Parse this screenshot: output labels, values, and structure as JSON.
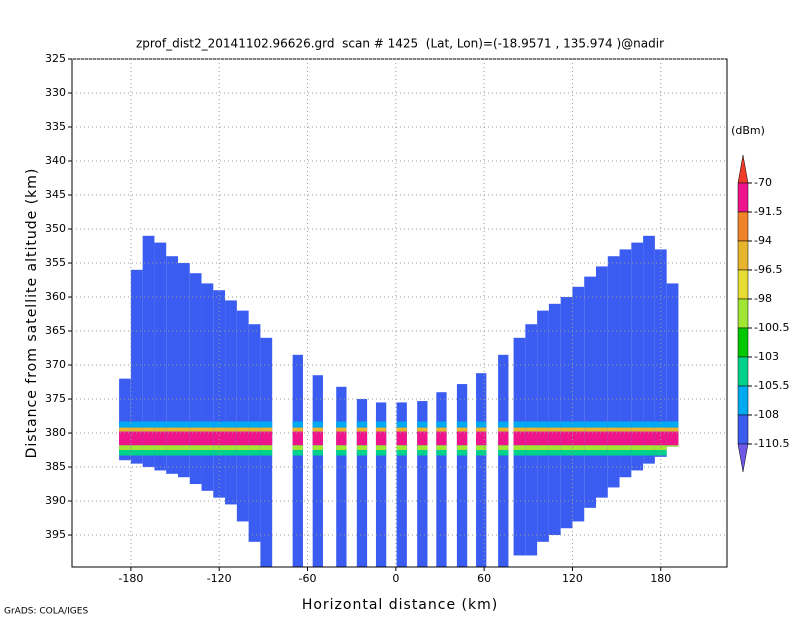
{
  "chart_data": {
    "type": "profile",
    "title": "zprof_dist2_20141102.96626.grd  scan # 1425  (Lat, Lon)=(-18.9571 , 135.974 )@nadir",
    "x_label": "Horizontal distance (km)",
    "y_label": "Distance from satellite altitude (km)",
    "footer": "GrADS: COLA/IGES",
    "xlim": [
      -220,
      225
    ],
    "ylim": [
      325,
      399.7
    ],
    "y_reversed": true,
    "xticks": [
      -180,
      -120,
      -60,
      0,
      60,
      120,
      180
    ],
    "yticks": [
      325,
      330,
      335,
      340,
      345,
      350,
      355,
      360,
      365,
      370,
      375,
      380,
      385,
      390,
      395
    ],
    "grid": true,
    "background_value": -109,
    "column_width": 8,
    "stripe_width": 7,
    "columns": {
      "x": [
        -184,
        -176,
        -168,
        -160,
        -152,
        -144,
        -136,
        -128,
        -120,
        -112,
        -104,
        -96,
        -88,
        84,
        92,
        100,
        108,
        116,
        124,
        132,
        140,
        148,
        156,
        164,
        172,
        180,
        188
      ],
      "top": [
        372,
        356,
        351,
        352,
        354,
        355,
        356.5,
        358,
        359,
        360.5,
        362,
        364,
        366,
        366,
        364,
        362,
        361,
        360,
        358.5,
        357,
        355.5,
        354,
        353,
        352,
        351,
        353,
        358
      ],
      "bottom": [
        384,
        384.5,
        385,
        385.5,
        386,
        386.5,
        387.5,
        388.5,
        389.5,
        390.5,
        393,
        396,
        399.7,
        398,
        398,
        396,
        395,
        394,
        393,
        391,
        389.5,
        388,
        386.5,
        385.5,
        384.5,
        383.5,
        382
      ]
    },
    "stripes": {
      "x": [
        -66.6,
        -53,
        -37,
        -23,
        -10,
        4,
        18,
        31,
        45,
        58,
        73
      ],
      "top": [
        368.5,
        371.5,
        373.2,
        375,
        375.5,
        375.5,
        375.3,
        374,
        372.8,
        371.2,
        368.5
      ],
      "bottom": [
        399.7,
        399.7,
        399.7,
        399.7,
        399.7,
        399.7,
        399.7,
        399.7,
        399.7,
        399.7,
        399.7
      ]
    },
    "layers": [
      {
        "top": 378.3,
        "bottom": 379.2,
        "value": -106
      },
      {
        "top": 379.2,
        "bottom": 379.8,
        "value": -95
      },
      {
        "top": 379.8,
        "bottom": 381.8,
        "value": -85
      },
      {
        "top": 381.8,
        "bottom": 382.5,
        "value": -99
      },
      {
        "top": 382.5,
        "bottom": 383.3,
        "value": -104
      }
    ],
    "colorbar": {
      "unit": "(dBm)",
      "levels": [
        -70,
        -91.5,
        -94,
        -96.5,
        -98,
        -100.5,
        -103,
        -105.5,
        -108,
        -110.5
      ],
      "colors": [
        "#f03c28",
        "#f0148c",
        "#f08228",
        "#e6b42d",
        "#e6dc32",
        "#a0e632",
        "#00c800",
        "#00d28c",
        "#00aaf0",
        "#3a5cf0",
        "#6e5ae6"
      ]
    }
  }
}
